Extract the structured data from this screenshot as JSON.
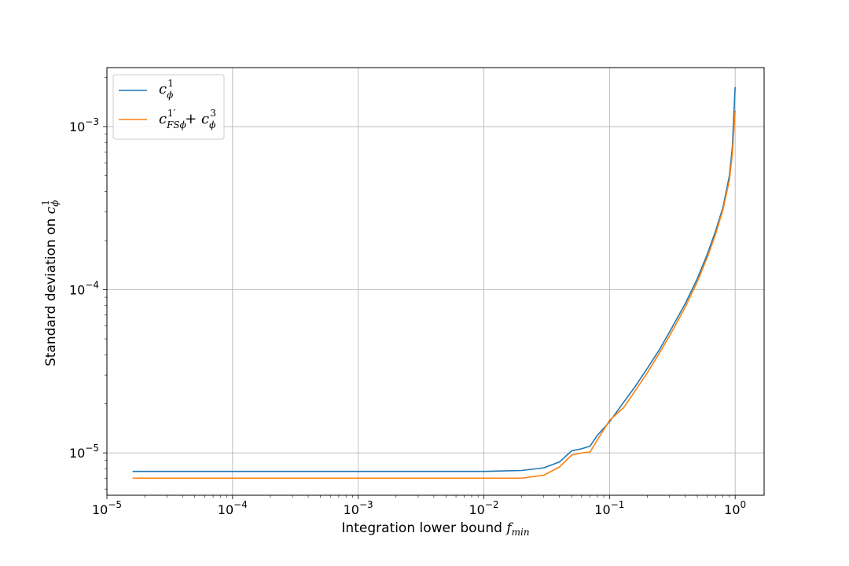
{
  "chart_data": {
    "type": "line",
    "xscale": "log",
    "yscale": "log",
    "xlim": [
      1e-05,
      1.7
    ],
    "ylim": [
      5.5e-06,
      0.0023
    ],
    "grid": true,
    "legend_position": "top-left",
    "xlabel": "Integration lower bound f_min",
    "ylabel": "Standard deviation on c_φ^1",
    "x_ticks": [
      {
        "value": 1e-05,
        "label": "10−5"
      },
      {
        "value": 0.0001,
        "label": "10−4"
      },
      {
        "value": 0.001,
        "label": "10−3"
      },
      {
        "value": 0.01,
        "label": "10−2"
      },
      {
        "value": 0.1,
        "label": "10−1"
      },
      {
        "value": 1,
        "label": "100"
      }
    ],
    "y_ticks": [
      {
        "value": 1e-05,
        "label": "10−5"
      },
      {
        "value": 0.0001,
        "label": "10−4"
      },
      {
        "value": 0.001,
        "label": "10−3"
      }
    ],
    "series": [
      {
        "name": "c_φ^1",
        "color": "#1f77b4",
        "x": [
          1.6e-05,
          0.0001,
          0.001,
          0.01,
          0.02,
          0.03,
          0.04,
          0.05,
          0.06,
          0.07,
          0.08,
          0.1,
          0.13,
          0.16,
          0.2,
          0.25,
          0.3,
          0.4,
          0.5,
          0.6,
          0.7,
          0.8,
          0.9,
          0.95,
          1.0
        ],
        "y": [
          7.7e-06,
          7.7e-06,
          7.7e-06,
          7.7e-06,
          7.8e-06,
          8.1e-06,
          8.8e-06,
          1.03e-05,
          1.06e-05,
          1.1e-05,
          1.28e-05,
          1.55e-05,
          2.05e-05,
          2.55e-05,
          3.3e-05,
          4.3e-05,
          5.5e-05,
          8.2e-05,
          0.000117,
          0.000165,
          0.00023,
          0.00032,
          0.0005,
          0.00075,
          0.00175
        ]
      },
      {
        "name": "c_FSφ^1′ + c_φ^3",
        "color": "#ff7f0e",
        "x": [
          1.6e-05,
          0.0001,
          0.001,
          0.01,
          0.02,
          0.03,
          0.04,
          0.05,
          0.06,
          0.07,
          0.08,
          0.1,
          0.13,
          0.16,
          0.2,
          0.25,
          0.3,
          0.4,
          0.5,
          0.6,
          0.7,
          0.8,
          0.9,
          0.95,
          1.0
        ],
        "y": [
          7e-06,
          7e-06,
          7e-06,
          7e-06,
          7e-06,
          7.3e-06,
          8.2e-06,
          9.7e-06,
          1e-05,
          1.01e-05,
          1.2e-05,
          1.58e-05,
          1.9e-05,
          2.4e-05,
          3.1e-05,
          4.1e-05,
          5.2e-05,
          7.8e-05,
          0.000112,
          0.000158,
          0.00022,
          0.00031,
          0.00047,
          0.00068,
          0.00125
        ]
      }
    ]
  }
}
